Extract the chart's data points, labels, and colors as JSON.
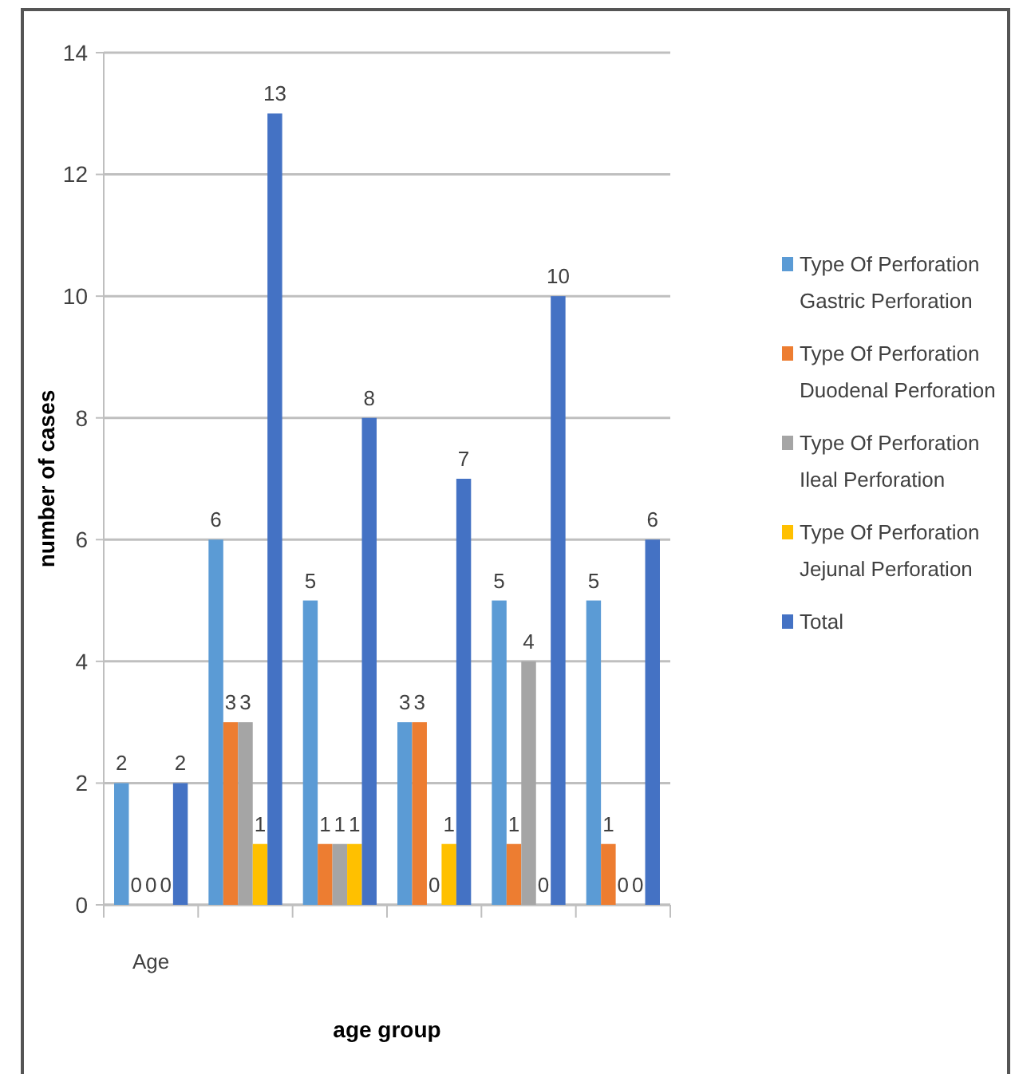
{
  "chart_data": {
    "type": "bar",
    "xlabel": "age group",
    "ylabel": "number of cases",
    "categories": [
      "Age",
      null,
      null,
      null,
      null,
      null
    ],
    "series": [
      {
        "name": "Type Of Perforation Gastric Perforation",
        "color": "#5b9bd5",
        "values": [
          2,
          6,
          5,
          3,
          5,
          5
        ]
      },
      {
        "name": "Type Of Perforation Duodenal Perforation",
        "color": "#ed7d31",
        "values": [
          0,
          3,
          1,
          3,
          1,
          1
        ]
      },
      {
        "name": "Type Of Perforation Ileal Perforation",
        "color": "#a5a5a5",
        "values": [
          0,
          3,
          1,
          0,
          4,
          0
        ]
      },
      {
        "name": "Type Of Perforation Jejunal Perforation",
        "color": "#ffc000",
        "values": [
          0,
          1,
          1,
          1,
          0,
          0
        ]
      },
      {
        "name": "Total",
        "color": "#4472c4",
        "values": [
          2,
          13,
          8,
          7,
          10,
          6
        ]
      }
    ],
    "ylim": [
      0,
      14
    ],
    "yticks": [
      0,
      2,
      4,
      6,
      8,
      10,
      12,
      14
    ],
    "grid": "y",
    "legend": "right",
    "data_labels": true
  }
}
